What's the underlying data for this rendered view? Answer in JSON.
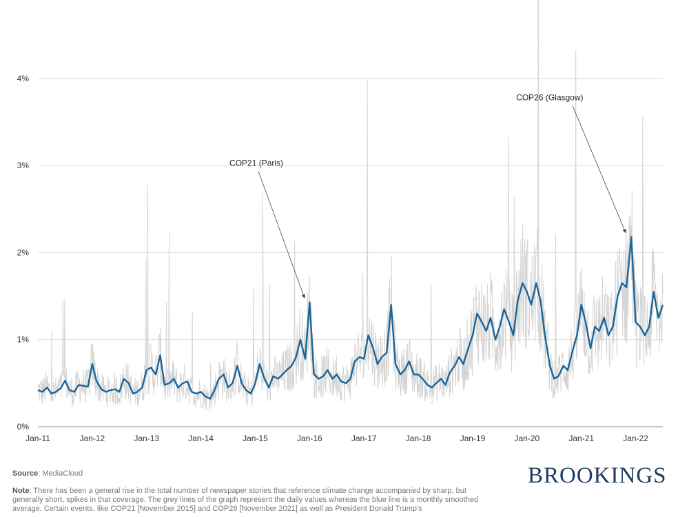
{
  "chart_data": {
    "type": "line",
    "title": "",
    "xlabel": "",
    "ylabel": "",
    "ylim": [
      0,
      4
    ],
    "y_ticks": [
      0,
      1,
      2,
      3,
      4
    ],
    "y_tick_labels": [
      "0%",
      "1%",
      "2%",
      "3%",
      "4%"
    ],
    "x_range": [
      2011.0,
      2022.5
    ],
    "x_ticks": [
      2011,
      2012,
      2013,
      2014,
      2015,
      2016,
      2017,
      2018,
      2019,
      2020,
      2021,
      2022
    ],
    "x_tick_labels": [
      "Jan-11",
      "Jan-12",
      "Jan-13",
      "Jan-14",
      "Jan-15",
      "Jan-16",
      "Jan-17",
      "Jan-18",
      "Jan-19",
      "Jan-20",
      "Jan-21",
      "Jan-22"
    ],
    "grid": true,
    "series": [
      {
        "name": "Monthly smoothed average",
        "color": "#1a6496",
        "x": [
          2011.0,
          2011.08,
          2011.17,
          2011.25,
          2011.33,
          2011.42,
          2011.5,
          2011.58,
          2011.67,
          2011.75,
          2011.83,
          2011.92,
          2012.0,
          2012.08,
          2012.17,
          2012.25,
          2012.33,
          2012.42,
          2012.5,
          2012.58,
          2012.67,
          2012.75,
          2012.83,
          2012.92,
          2013.0,
          2013.08,
          2013.17,
          2013.25,
          2013.33,
          2013.42,
          2013.5,
          2013.58,
          2013.67,
          2013.75,
          2013.83,
          2013.92,
          2014.0,
          2014.08,
          2014.17,
          2014.25,
          2014.33,
          2014.42,
          2014.5,
          2014.58,
          2014.67,
          2014.75,
          2014.83,
          2014.92,
          2015.0,
          2015.08,
          2015.17,
          2015.25,
          2015.33,
          2015.42,
          2015.5,
          2015.58,
          2015.67,
          2015.75,
          2015.83,
          2015.92,
          2016.0,
          2016.08,
          2016.17,
          2016.25,
          2016.33,
          2016.42,
          2016.5,
          2016.58,
          2016.67,
          2016.75,
          2016.83,
          2016.92,
          2017.0,
          2017.08,
          2017.17,
          2017.25,
          2017.33,
          2017.42,
          2017.5,
          2017.58,
          2017.67,
          2017.75,
          2017.83,
          2017.92,
          2018.0,
          2018.08,
          2018.17,
          2018.25,
          2018.33,
          2018.42,
          2018.5,
          2018.58,
          2018.67,
          2018.75,
          2018.83,
          2018.92,
          2019.0,
          2019.08,
          2019.17,
          2019.25,
          2019.33,
          2019.42,
          2019.5,
          2019.58,
          2019.67,
          2019.75,
          2019.83,
          2019.92,
          2020.0,
          2020.08,
          2020.17,
          2020.25,
          2020.33,
          2020.42,
          2020.5,
          2020.58,
          2020.67,
          2020.75,
          2020.83,
          2020.92,
          2021.0,
          2021.08,
          2021.17,
          2021.25,
          2021.33,
          2021.42,
          2021.5,
          2021.58,
          2021.67,
          2021.75,
          2021.83,
          2021.92,
          2022.0,
          2022.08,
          2022.17,
          2022.25,
          2022.33,
          2022.42,
          2022.5
        ],
        "values": [
          0.42,
          0.4,
          0.45,
          0.38,
          0.4,
          0.44,
          0.53,
          0.42,
          0.4,
          0.48,
          0.47,
          0.46,
          0.72,
          0.52,
          0.43,
          0.4,
          0.42,
          0.43,
          0.4,
          0.55,
          0.5,
          0.38,
          0.4,
          0.45,
          0.65,
          0.68,
          0.6,
          0.82,
          0.48,
          0.5,
          0.55,
          0.45,
          0.5,
          0.52,
          0.4,
          0.38,
          0.4,
          0.35,
          0.32,
          0.42,
          0.55,
          0.6,
          0.45,
          0.5,
          0.7,
          0.5,
          0.42,
          0.38,
          0.5,
          0.72,
          0.55,
          0.45,
          0.58,
          0.55,
          0.6,
          0.65,
          0.7,
          0.8,
          1.0,
          0.78,
          1.43,
          0.6,
          0.55,
          0.58,
          0.65,
          0.55,
          0.6,
          0.52,
          0.5,
          0.55,
          0.75,
          0.8,
          0.78,
          1.05,
          0.9,
          0.72,
          0.8,
          0.85,
          1.4,
          0.72,
          0.6,
          0.65,
          0.75,
          0.6,
          0.6,
          0.55,
          0.48,
          0.45,
          0.5,
          0.55,
          0.48,
          0.62,
          0.7,
          0.8,
          0.72,
          0.9,
          1.05,
          1.3,
          1.2,
          1.1,
          1.25,
          1.0,
          1.15,
          1.35,
          1.2,
          1.05,
          1.45,
          1.65,
          1.55,
          1.4,
          1.65,
          1.45,
          1.05,
          0.7,
          0.55,
          0.58,
          0.7,
          0.65,
          0.85,
          1.05,
          1.4,
          1.2,
          0.9,
          1.15,
          1.1,
          1.25,
          1.05,
          1.15,
          1.5,
          1.65,
          1.6,
          2.18,
          1.2,
          1.15,
          1.05,
          1.15,
          1.55,
          1.25,
          1.4
        ]
      }
    ],
    "grey_daily_note": "Grey lines represent daily values",
    "annotations": [
      {
        "text": "COP21 (Paris)",
        "x": 2015.92,
        "y": 1.43
      },
      {
        "text": "COP26 (Glasgow)",
        "x": 2021.83,
        "y": 2.18
      }
    ]
  },
  "footer": {
    "source_label": "Source",
    "source_text": ": MediaCloud",
    "note_label": "Note",
    "note_text": ": There has been a general rise in the total number of newspaper stories that reference climate change accompanied by sharp, but generally short, spikes in that coverage. The grey lines of the graph represent the daily values whereas the blue line is a monthly smoothed average. Certain events, like COP21 [November 2015] and COP26 [November 2021] as well as President Donald Trump's",
    "brand": "BROOKINGS"
  }
}
